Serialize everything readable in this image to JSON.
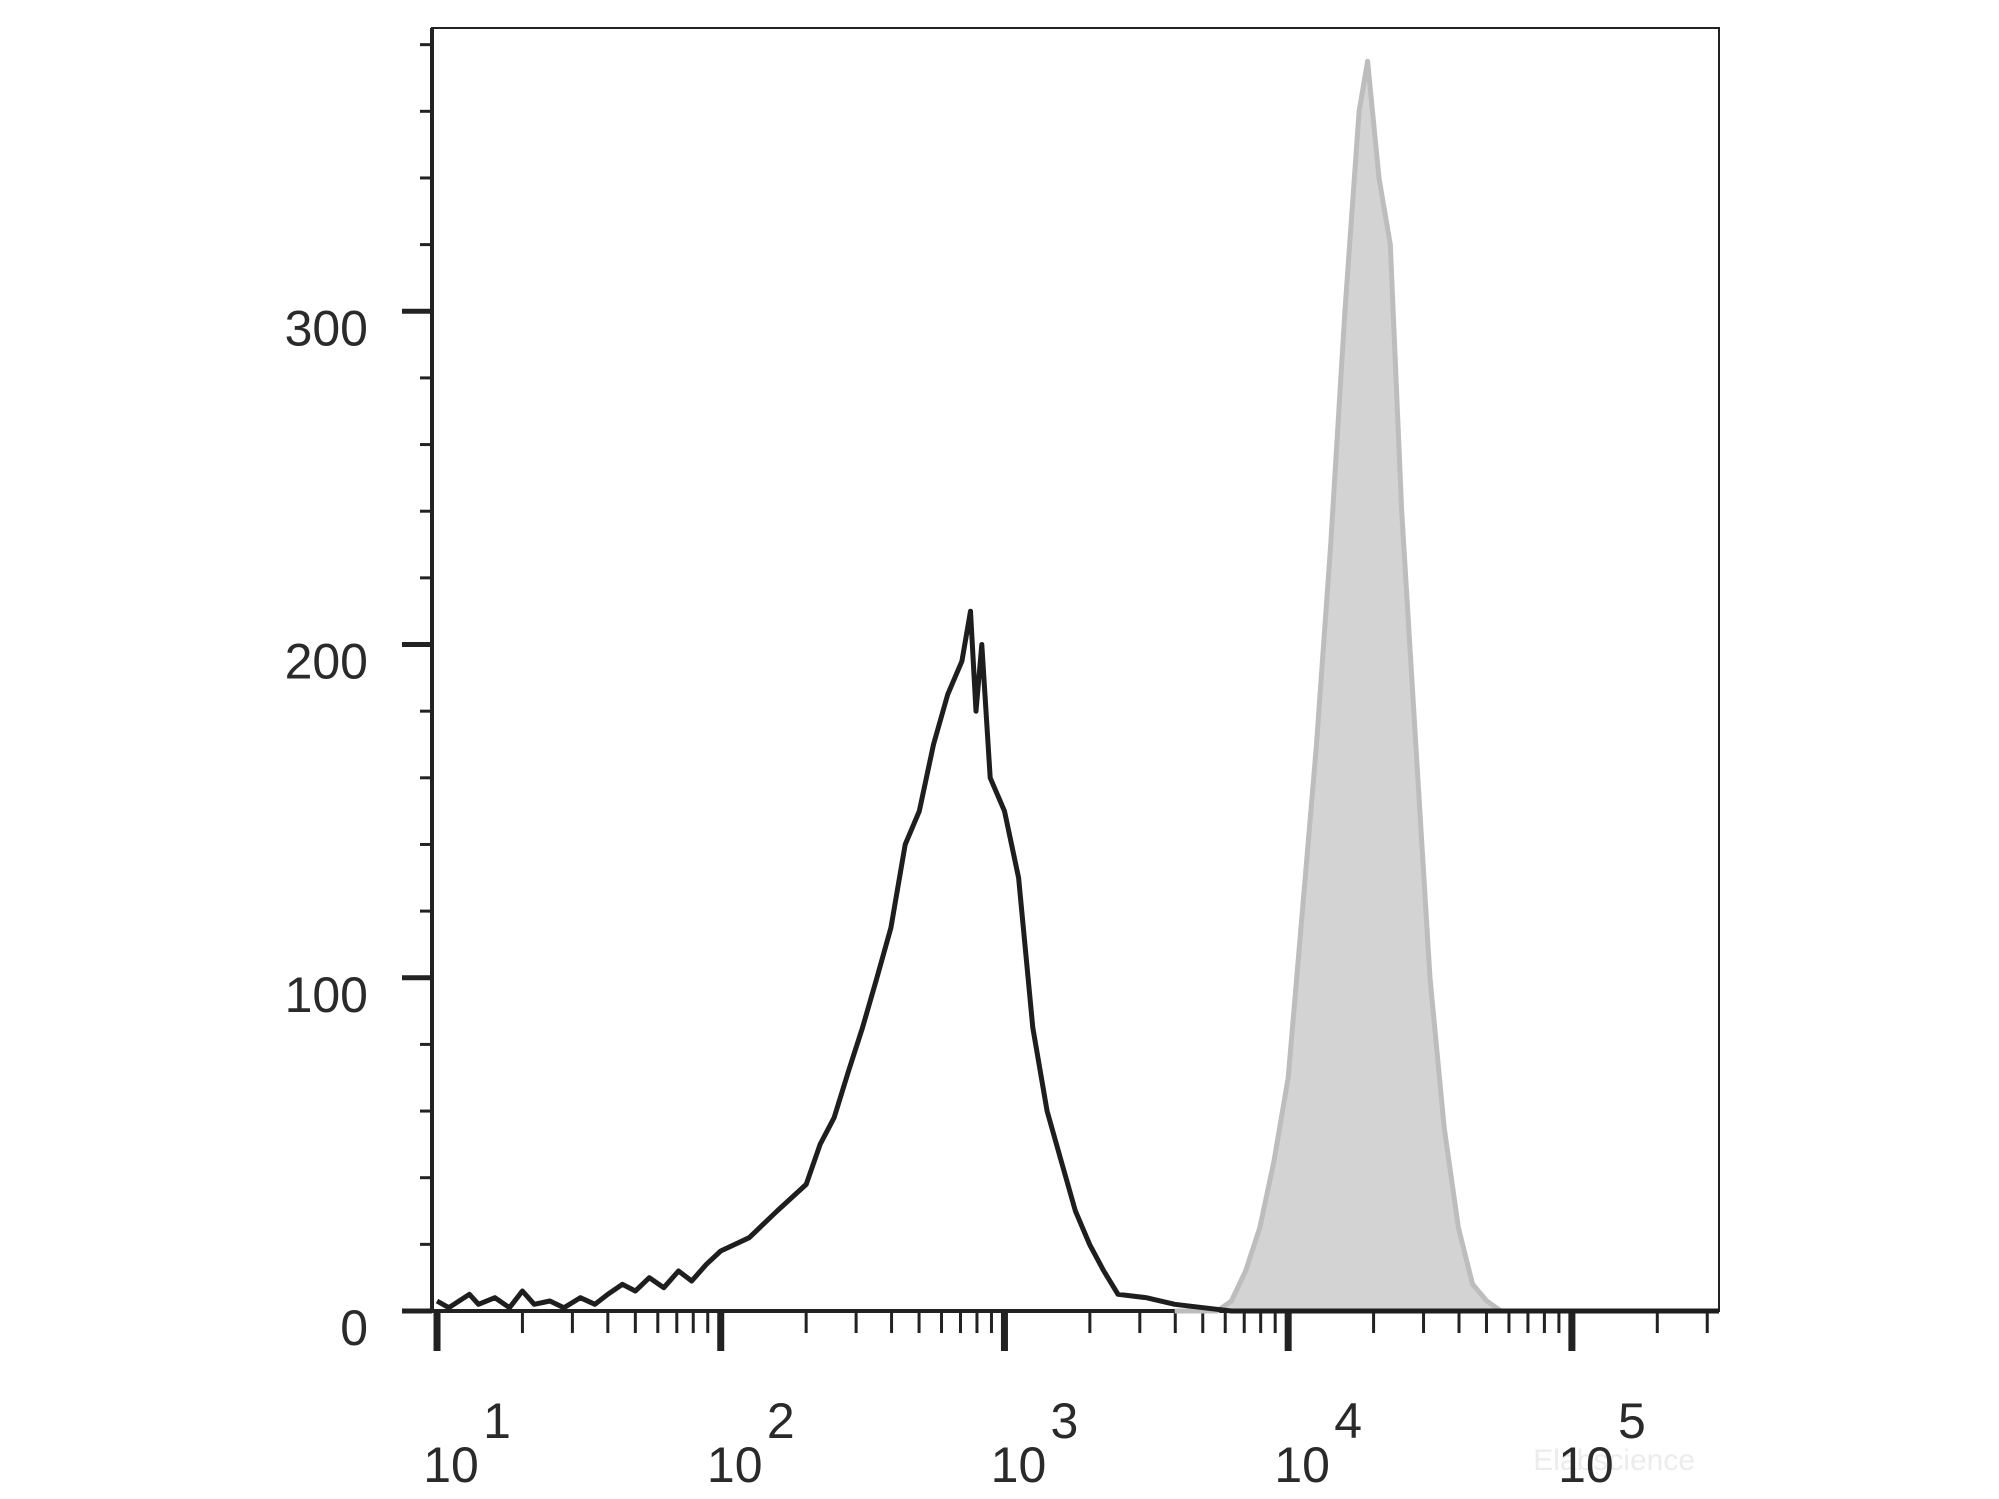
{
  "chart_data": {
    "type": "histogram",
    "xscale": "log",
    "xlim": [
      9.6,
      330000
    ],
    "ylim": [
      0,
      385
    ],
    "xticks": [
      {
        "value": 10,
        "label": "10",
        "exponent": "1"
      },
      {
        "value": 100,
        "label": "10",
        "exponent": "2"
      },
      {
        "value": 1000,
        "label": "10",
        "exponent": "3"
      },
      {
        "value": 10000,
        "label": "10",
        "exponent": "4"
      },
      {
        "value": 100000,
        "label": "10",
        "exponent": "5"
      }
    ],
    "xminorticks": [
      20,
      30,
      40,
      50,
      60,
      70,
      80,
      90,
      200,
      300,
      400,
      500,
      600,
      700,
      800,
      900,
      2000,
      3000,
      4000,
      5000,
      6000,
      7000,
      8000,
      9000,
      20000,
      30000,
      40000,
      50000,
      60000,
      70000,
      80000,
      90000,
      200000,
      300000
    ],
    "yticks": [
      0,
      100,
      200,
      300
    ],
    "yminorticks": [
      20,
      40,
      60,
      80,
      120,
      140,
      160,
      180,
      220,
      240,
      260,
      280,
      320,
      340,
      360,
      380
    ],
    "watermark": "Elabscience",
    "series": [
      {
        "color": "#bdbdbd",
        "fill": "#d3d3d3",
        "x": [
          3981,
          5623,
          6310,
          7079,
          7943,
          8913,
          10000,
          11220,
          12589,
          14125,
          15849,
          17783,
          19055,
          20893,
          22909,
          25119,
          28184,
          31623,
          35481,
          39811,
          44668,
          50119,
          56234
        ],
        "values": [
          0,
          0,
          3,
          12,
          25,
          45,
          70,
          120,
          170,
          230,
          300,
          360,
          375,
          340,
          320,
          240,
          170,
          100,
          55,
          25,
          8,
          3,
          0
        ]
      },
      {
        "color": "#1e1e1e",
        "x": [
          10,
          11,
          13,
          14,
          16,
          18,
          20,
          22,
          25,
          28,
          32,
          36,
          40,
          45,
          50,
          56,
          63,
          71,
          79,
          89,
          100,
          126,
          158,
          200,
          224,
          251,
          282,
          316,
          355,
          398,
          447,
          501,
          562,
          631,
          708,
          759,
          794,
          832,
          891,
          1000,
          1122,
          1259,
          1413,
          1585,
          1778,
          1995,
          2239,
          2512,
          3162,
          3981,
          5012,
          6310,
          30000,
          330000
        ],
        "values": [
          3,
          1,
          5,
          2,
          4,
          1,
          6,
          2,
          3,
          1,
          4,
          2,
          5,
          8,
          6,
          10,
          7,
          12,
          9,
          14,
          18,
          22,
          30,
          38,
          50,
          58,
          72,
          85,
          100,
          115,
          140,
          150,
          170,
          185,
          195,
          210,
          180,
          200,
          160,
          150,
          130,
          85,
          60,
          45,
          30,
          20,
          12,
          5,
          4,
          2,
          1,
          0,
          0,
          0
        ]
      }
    ]
  }
}
